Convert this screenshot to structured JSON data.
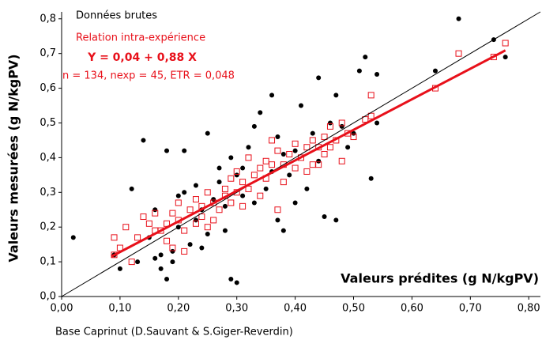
{
  "chart_data": {
    "type": "scatter",
    "xlabel": "Valeurs prédites (g N/kgPV)",
    "ylabel": "Valeurs mesurées (g N/kgPV)",
    "annotations": [
      "Y = 0,04 + 0,88 X",
      "n = 134, nexp = 45, ETR = 0,048"
    ],
    "footnote": "Base Caprinut (D.Sauvant & S.Giger-Reverdin)",
    "xlim": [
      0,
      0.82
    ],
    "ylim": [
      0,
      0.82
    ],
    "xticks": [
      {
        "value": 0,
        "label": "0,00"
      },
      {
        "value": 0.1,
        "label": "0,10"
      },
      {
        "value": 0.2,
        "label": "0,20"
      },
      {
        "value": 0.3,
        "label": "0,30"
      },
      {
        "value": 0.4,
        "label": "0,40"
      },
      {
        "value": 0.5,
        "label": "0,50"
      },
      {
        "value": 0.6,
        "label": "0,60"
      },
      {
        "value": 0.7,
        "label": "0,70"
      },
      {
        "value": 0.8,
        "label": "0,80"
      }
    ],
    "yticks": [
      {
        "value": 0,
        "label": "0,0"
      },
      {
        "value": 0.1,
        "label": "0,1"
      },
      {
        "value": 0.2,
        "label": "0,2"
      },
      {
        "value": 0.3,
        "label": "0,3"
      },
      {
        "value": 0.4,
        "label": "0,4"
      },
      {
        "value": 0.5,
        "label": "0,5"
      },
      {
        "value": 0.6,
        "label": "0,6"
      },
      {
        "value": 0.7,
        "label": "0,7"
      },
      {
        "value": 0.8,
        "label": "0,8"
      }
    ],
    "lines": [
      {
        "color": "#000000",
        "x": [
          0,
          0.82
        ],
        "values": [
          0,
          0.82
        ]
      },
      {
        "color": "#e8101a",
        "x": [
          0.085,
          0.76
        ],
        "values": [
          0.115,
          0.709
        ]
      }
    ],
    "series": [
      {
        "name": "Données brutes",
        "color": "#000000",
        "marker": "dot",
        "x": [
          0.02,
          0.09,
          0.1,
          0.12,
          0.13,
          0.14,
          0.15,
          0.16,
          0.16,
          0.17,
          0.17,
          0.18,
          0.18,
          0.19,
          0.19,
          0.2,
          0.2,
          0.21,
          0.21,
          0.22,
          0.23,
          0.23,
          0.24,
          0.24,
          0.25,
          0.25,
          0.26,
          0.27,
          0.27,
          0.28,
          0.28,
          0.29,
          0.29,
          0.3,
          0.3,
          0.31,
          0.31,
          0.32,
          0.33,
          0.33,
          0.34,
          0.35,
          0.36,
          0.36,
          0.37,
          0.37,
          0.38,
          0.38,
          0.39,
          0.4,
          0.4,
          0.41,
          0.42,
          0.43,
          0.44,
          0.44,
          0.45,
          0.46,
          0.47,
          0.47,
          0.48,
          0.49,
          0.5,
          0.51,
          0.52,
          0.53,
          0.54,
          0.54,
          0.64,
          0.68,
          0.74,
          0.76
        ],
        "values": [
          0.17,
          0.12,
          0.08,
          0.31,
          0.1,
          0.45,
          0.17,
          0.11,
          0.25,
          0.12,
          0.08,
          0.05,
          0.42,
          0.13,
          0.1,
          0.2,
          0.29,
          0.42,
          0.3,
          0.15,
          0.32,
          0.22,
          0.25,
          0.14,
          0.47,
          0.18,
          0.28,
          0.33,
          0.37,
          0.26,
          0.19,
          0.05,
          0.4,
          0.04,
          0.35,
          0.37,
          0.29,
          0.43,
          0.49,
          0.27,
          0.53,
          0.31,
          0.58,
          0.36,
          0.46,
          0.22,
          0.19,
          0.41,
          0.35,
          0.42,
          0.27,
          0.55,
          0.31,
          0.47,
          0.63,
          0.39,
          0.23,
          0.5,
          0.58,
          0.22,
          0.49,
          0.43,
          0.47,
          0.65,
          0.69,
          0.34,
          0.64,
          0.5,
          0.65,
          0.8,
          0.74,
          0.69
        ]
      },
      {
        "name": "Relation intra-expérience",
        "color": "#e8101a",
        "marker": "square",
        "x": [
          0.09,
          0.09,
          0.1,
          0.11,
          0.12,
          0.13,
          0.14,
          0.15,
          0.16,
          0.16,
          0.17,
          0.18,
          0.18,
          0.19,
          0.19,
          0.2,
          0.2,
          0.21,
          0.21,
          0.22,
          0.23,
          0.23,
          0.24,
          0.24,
          0.25,
          0.25,
          0.26,
          0.26,
          0.27,
          0.28,
          0.28,
          0.29,
          0.29,
          0.3,
          0.3,
          0.31,
          0.31,
          0.32,
          0.32,
          0.33,
          0.34,
          0.34,
          0.35,
          0.35,
          0.36,
          0.36,
          0.37,
          0.37,
          0.38,
          0.38,
          0.39,
          0.4,
          0.4,
          0.41,
          0.42,
          0.42,
          0.43,
          0.43,
          0.44,
          0.44,
          0.45,
          0.45,
          0.46,
          0.46,
          0.47,
          0.48,
          0.48,
          0.49,
          0.5,
          0.52,
          0.53,
          0.53,
          0.64,
          0.68,
          0.74,
          0.76
        ],
        "values": [
          0.12,
          0.17,
          0.14,
          0.2,
          0.1,
          0.17,
          0.23,
          0.21,
          0.19,
          0.24,
          0.19,
          0.16,
          0.21,
          0.14,
          0.24,
          0.22,
          0.27,
          0.13,
          0.19,
          0.25,
          0.21,
          0.28,
          0.23,
          0.26,
          0.2,
          0.3,
          0.22,
          0.27,
          0.25,
          0.31,
          0.29,
          0.27,
          0.34,
          0.3,
          0.36,
          0.26,
          0.33,
          0.4,
          0.31,
          0.35,
          0.37,
          0.29,
          0.39,
          0.34,
          0.45,
          0.38,
          0.25,
          0.42,
          0.33,
          0.38,
          0.41,
          0.37,
          0.44,
          0.4,
          0.36,
          0.43,
          0.38,
          0.45,
          0.43,
          0.38,
          0.46,
          0.41,
          0.49,
          0.43,
          0.45,
          0.5,
          0.39,
          0.47,
          0.46,
          0.51,
          0.58,
          0.52,
          0.6,
          0.7,
          0.69,
          0.73
        ]
      }
    ]
  }
}
